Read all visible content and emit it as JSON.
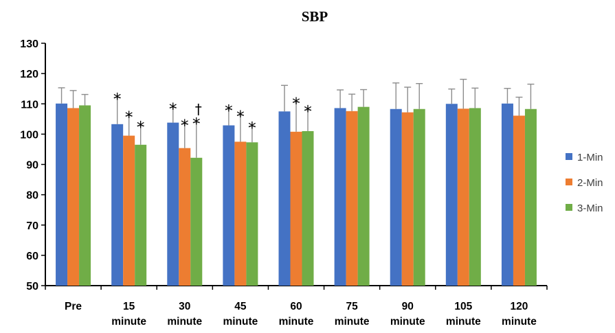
{
  "chart_data": {
    "type": "bar",
    "title": "SBP",
    "xlabel": "",
    "ylabel": "",
    "ylim": [
      50,
      130
    ],
    "yticks": [
      "50",
      "60",
      "70",
      "80",
      "90",
      "100",
      "110",
      "120",
      "130"
    ],
    "categories": [
      [
        "Pre"
      ],
      [
        "15",
        "minute"
      ],
      [
        "30",
        "minute"
      ],
      [
        "45",
        "minute"
      ],
      [
        "60",
        "minute"
      ],
      [
        "75",
        "minute"
      ],
      [
        "90",
        "minute"
      ],
      [
        "105",
        "minute"
      ],
      [
        "120",
        "minute"
      ]
    ],
    "series": [
      {
        "name": "1-Min",
        "color": "#4472C4",
        "values": [
          110.1,
          103.3,
          103.8,
          102.9,
          107.5,
          108.6,
          108.3,
          110.0,
          110.1
        ],
        "error": [
          5.2,
          8.8,
          5.0,
          5.4,
          8.6,
          6.0,
          8.6,
          4.9,
          5.0
        ],
        "marks": [
          "",
          "*",
          "*",
          "*",
          "",
          "",
          "",
          "",
          ""
        ]
      },
      {
        "name": "2-Min",
        "color": "#ED7D31",
        "values": [
          108.6,
          99.5,
          95.4,
          97.5,
          100.8,
          107.6,
          107.2,
          108.4,
          106.1
        ],
        "error": [
          5.8,
          6.6,
          8.0,
          8.8,
          9.8,
          5.6,
          8.3,
          9.7,
          6.1
        ],
        "marks": [
          "",
          "*",
          "*",
          "*",
          "*",
          "",
          "",
          "",
          ""
        ]
      },
      {
        "name": "3-Min",
        "color": "#70AD47",
        "values": [
          109.5,
          96.5,
          92.2,
          97.3,
          101.0,
          109.0,
          108.3,
          108.6,
          108.3
        ],
        "error": [
          3.6,
          6.3,
          11.7,
          5.3,
          7.0,
          5.7,
          8.4,
          6.6,
          8.2
        ],
        "marks": [
          "",
          "*",
          "*",
          "*",
          "*",
          "",
          "",
          "",
          ""
        ],
        "extra_marks": [
          "",
          "",
          "†",
          "",
          "",
          "",
          "",
          "",
          ""
        ]
      }
    ],
    "legend_position": "right",
    "grid": false
  }
}
